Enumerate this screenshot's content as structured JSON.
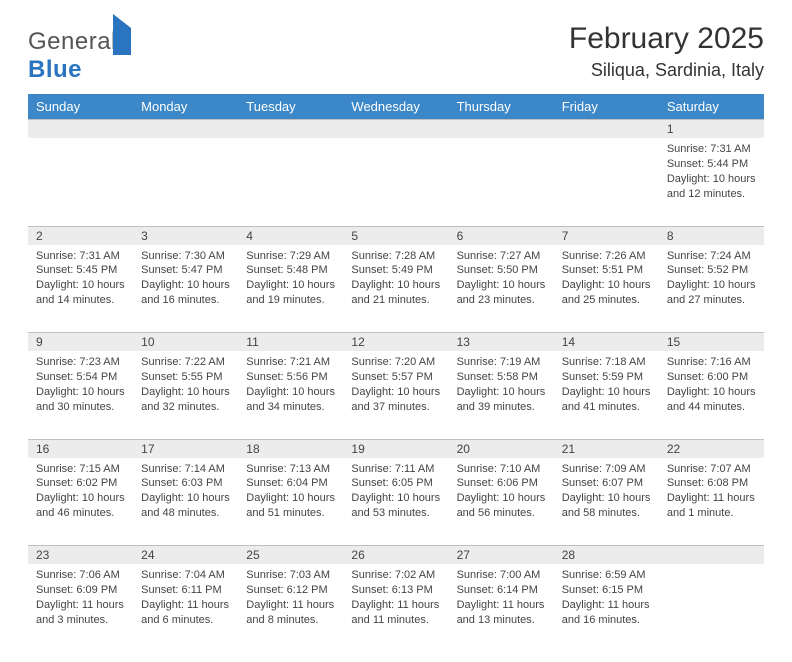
{
  "logo": {
    "text1": "General",
    "text2": "Blue"
  },
  "title": "February 2025",
  "location": "Siliqua, Sardinia, Italy",
  "colors": {
    "header_bg": "#3b87c8",
    "header_fg": "#ffffff",
    "daynum_bg": "#ececec",
    "border": "#bfbfbf",
    "text": "#333333",
    "logo_blue": "#2a74c0"
  },
  "weekdays": [
    "Sunday",
    "Monday",
    "Tuesday",
    "Wednesday",
    "Thursday",
    "Friday",
    "Saturday"
  ],
  "weeks": [
    [
      null,
      null,
      null,
      null,
      null,
      null,
      {
        "n": "1",
        "sunrise": "7:31 AM",
        "sunset": "5:44 PM",
        "daylight": "10 hours and 12 minutes."
      }
    ],
    [
      {
        "n": "2",
        "sunrise": "7:31 AM",
        "sunset": "5:45 PM",
        "daylight": "10 hours and 14 minutes."
      },
      {
        "n": "3",
        "sunrise": "7:30 AM",
        "sunset": "5:47 PM",
        "daylight": "10 hours and 16 minutes."
      },
      {
        "n": "4",
        "sunrise": "7:29 AM",
        "sunset": "5:48 PM",
        "daylight": "10 hours and 19 minutes."
      },
      {
        "n": "5",
        "sunrise": "7:28 AM",
        "sunset": "5:49 PM",
        "daylight": "10 hours and 21 minutes."
      },
      {
        "n": "6",
        "sunrise": "7:27 AM",
        "sunset": "5:50 PM",
        "daylight": "10 hours and 23 minutes."
      },
      {
        "n": "7",
        "sunrise": "7:26 AM",
        "sunset": "5:51 PM",
        "daylight": "10 hours and 25 minutes."
      },
      {
        "n": "8",
        "sunrise": "7:24 AM",
        "sunset": "5:52 PM",
        "daylight": "10 hours and 27 minutes."
      }
    ],
    [
      {
        "n": "9",
        "sunrise": "7:23 AM",
        "sunset": "5:54 PM",
        "daylight": "10 hours and 30 minutes."
      },
      {
        "n": "10",
        "sunrise": "7:22 AM",
        "sunset": "5:55 PM",
        "daylight": "10 hours and 32 minutes."
      },
      {
        "n": "11",
        "sunrise": "7:21 AM",
        "sunset": "5:56 PM",
        "daylight": "10 hours and 34 minutes."
      },
      {
        "n": "12",
        "sunrise": "7:20 AM",
        "sunset": "5:57 PM",
        "daylight": "10 hours and 37 minutes."
      },
      {
        "n": "13",
        "sunrise": "7:19 AM",
        "sunset": "5:58 PM",
        "daylight": "10 hours and 39 minutes."
      },
      {
        "n": "14",
        "sunrise": "7:18 AM",
        "sunset": "5:59 PM",
        "daylight": "10 hours and 41 minutes."
      },
      {
        "n": "15",
        "sunrise": "7:16 AM",
        "sunset": "6:00 PM",
        "daylight": "10 hours and 44 minutes."
      }
    ],
    [
      {
        "n": "16",
        "sunrise": "7:15 AM",
        "sunset": "6:02 PM",
        "daylight": "10 hours and 46 minutes."
      },
      {
        "n": "17",
        "sunrise": "7:14 AM",
        "sunset": "6:03 PM",
        "daylight": "10 hours and 48 minutes."
      },
      {
        "n": "18",
        "sunrise": "7:13 AM",
        "sunset": "6:04 PM",
        "daylight": "10 hours and 51 minutes."
      },
      {
        "n": "19",
        "sunrise": "7:11 AM",
        "sunset": "6:05 PM",
        "daylight": "10 hours and 53 minutes."
      },
      {
        "n": "20",
        "sunrise": "7:10 AM",
        "sunset": "6:06 PM",
        "daylight": "10 hours and 56 minutes."
      },
      {
        "n": "21",
        "sunrise": "7:09 AM",
        "sunset": "6:07 PM",
        "daylight": "10 hours and 58 minutes."
      },
      {
        "n": "22",
        "sunrise": "7:07 AM",
        "sunset": "6:08 PM",
        "daylight": "11 hours and 1 minute."
      }
    ],
    [
      {
        "n": "23",
        "sunrise": "7:06 AM",
        "sunset": "6:09 PM",
        "daylight": "11 hours and 3 minutes."
      },
      {
        "n": "24",
        "sunrise": "7:04 AM",
        "sunset": "6:11 PM",
        "daylight": "11 hours and 6 minutes."
      },
      {
        "n": "25",
        "sunrise": "7:03 AM",
        "sunset": "6:12 PM",
        "daylight": "11 hours and 8 minutes."
      },
      {
        "n": "26",
        "sunrise": "7:02 AM",
        "sunset": "6:13 PM",
        "daylight": "11 hours and 11 minutes."
      },
      {
        "n": "27",
        "sunrise": "7:00 AM",
        "sunset": "6:14 PM",
        "daylight": "11 hours and 13 minutes."
      },
      {
        "n": "28",
        "sunrise": "6:59 AM",
        "sunset": "6:15 PM",
        "daylight": "11 hours and 16 minutes."
      },
      null
    ]
  ],
  "labels": {
    "sunrise": "Sunrise:",
    "sunset": "Sunset:",
    "daylight": "Daylight:"
  }
}
